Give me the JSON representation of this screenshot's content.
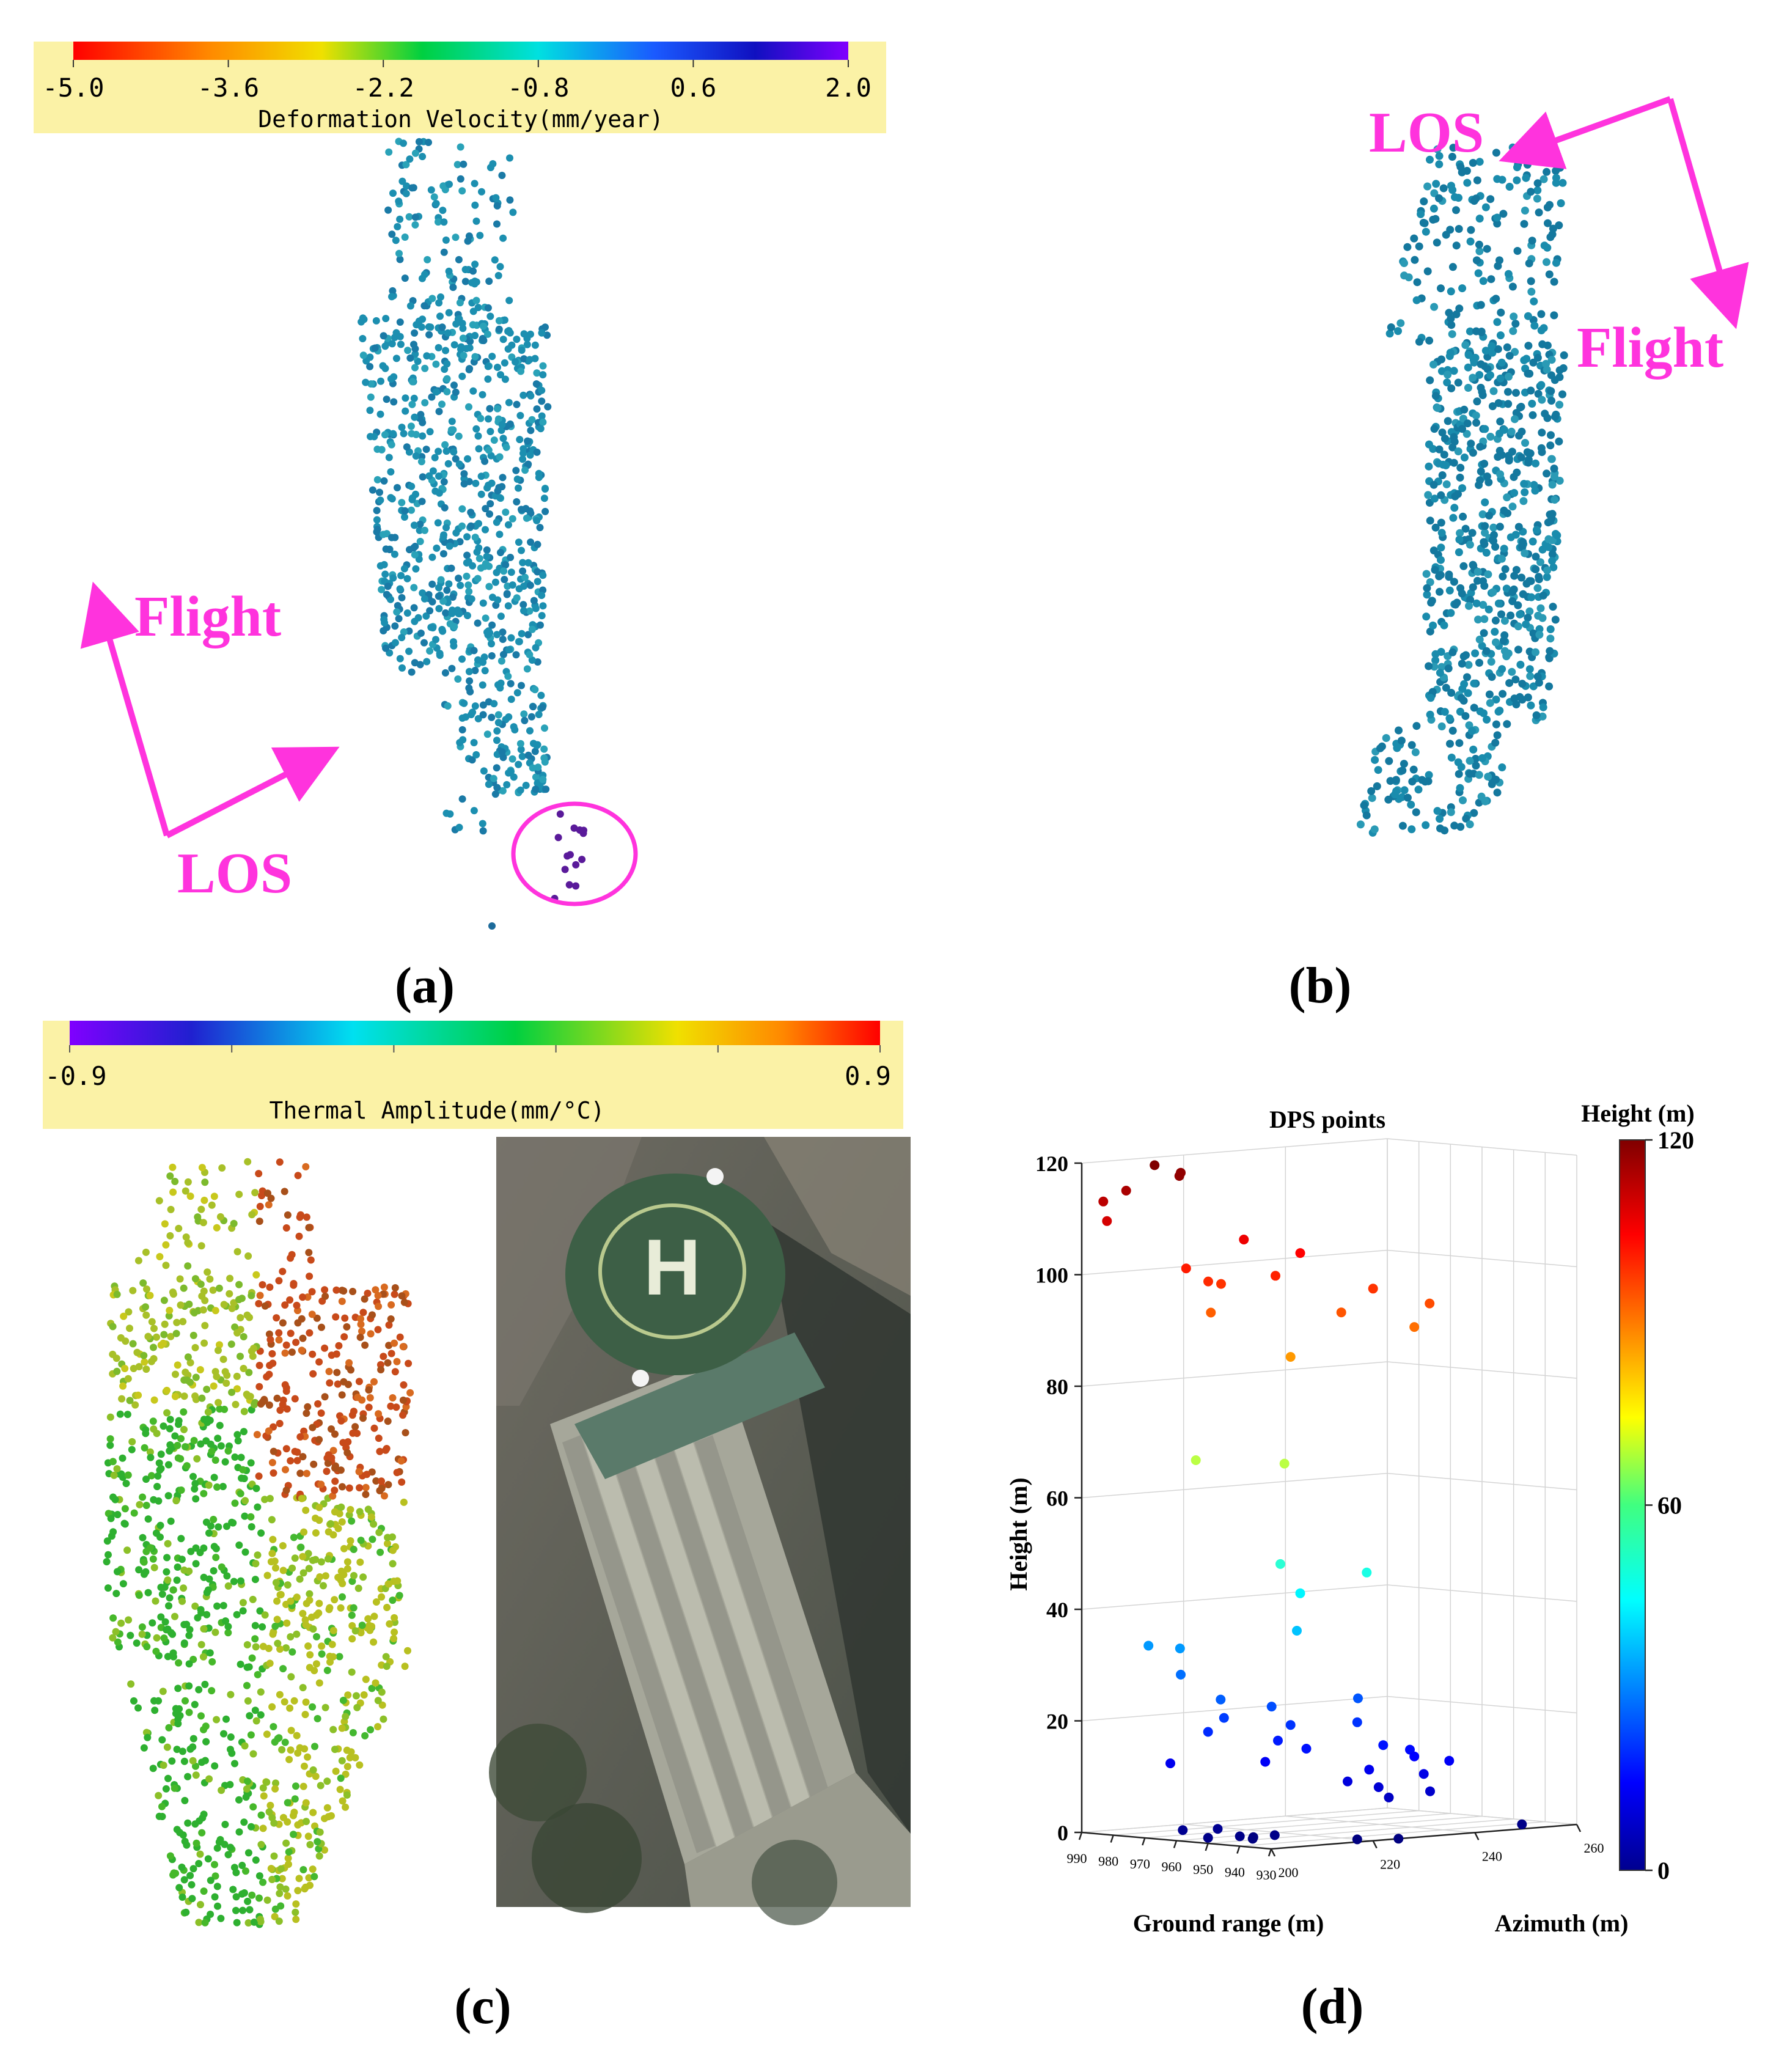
{
  "panels": [
    {
      "id": "a",
      "caption": "(a)"
    },
    {
      "id": "b",
      "caption": "(b)"
    },
    {
      "id": "c",
      "caption": "(c)"
    },
    {
      "id": "d",
      "caption": "(d)"
    }
  ],
  "geometry_labels": {
    "flight": "Flight",
    "los": "LOS",
    "accent_color": "#ff33dd"
  },
  "colors": {
    "colorbar_bg": "#fbf2a6",
    "point_a": "#1a8ca8",
    "point_b": "#12739a",
    "anomaly": "#5a1a9a"
  },
  "chart_data": [
    {
      "panel": "a",
      "type": "scatter",
      "title": "",
      "colorbar": {
        "label": "Deformation Velocity(mm/year)",
        "ticks": [
          "-5.0",
          "-3.6",
          "-2.2",
          "-0.8",
          "0.6",
          "2.0"
        ],
        "range": [
          -5.0,
          2.0
        ],
        "colormap": "jet-like red→violet"
      },
      "annotation": "circled anomalous points (violet)"
    },
    {
      "panel": "b",
      "type": "scatter",
      "title": "",
      "colorbar": null
    },
    {
      "panel": "c",
      "type": "scatter",
      "title": "",
      "colorbar": {
        "label": "Thermal Amplitude(mm/°C)",
        "ticks": [
          "-0.9",
          "0.9"
        ],
        "range": [
          -0.9,
          0.9
        ],
        "colormap": "violet→red"
      },
      "photo": "optical image of building with rooftop helipad",
      "helipad_letter": "H"
    },
    {
      "panel": "d",
      "type": "scatter",
      "title": "DPS points",
      "xlabel": "Ground range (m)",
      "ylabel": "Height (m)",
      "zlabel": "Azimuth (m)",
      "colorbar_label": "Height (m)",
      "colorbar_ticks": [
        "0",
        "60",
        "120"
      ],
      "colorbar_range": [
        0,
        120
      ],
      "height_ticks": [
        "0",
        "20",
        "40",
        "60",
        "80",
        "100",
        "120"
      ],
      "ground_range_ticks": [
        "990",
        "980",
        "970",
        "960",
        "950",
        "940",
        "930"
      ],
      "azimuth_ticks": [
        "200",
        "220",
        "240",
        "260"
      ],
      "height_ylim": [
        0,
        120
      ],
      "grid": true,
      "points": [
        {
          "g": 975,
          "a": 205,
          "h": 120
        },
        {
          "g": 972,
          "a": 208,
          "h": 118
        },
        {
          "g": 984,
          "a": 205,
          "h": 115
        },
        {
          "g": 988,
          "a": 203,
          "h": 113
        },
        {
          "g": 978,
          "a": 212,
          "h": 118
        },
        {
          "g": 982,
          "a": 200,
          "h": 110
        },
        {
          "g": 958,
          "a": 212,
          "h": 107
        },
        {
          "g": 945,
          "a": 215,
          "h": 105
        },
        {
          "g": 965,
          "a": 205,
          "h": 102
        },
        {
          "g": 958,
          "a": 205,
          "h": 100
        },
        {
          "g": 948,
          "a": 212,
          "h": 101
        },
        {
          "g": 962,
          "a": 210,
          "h": 99
        },
        {
          "g": 930,
          "a": 220,
          "h": 99
        },
        {
          "g": 925,
          "a": 228,
          "h": 96
        },
        {
          "g": 932,
          "a": 215,
          "h": 95
        },
        {
          "g": 962,
          "a": 208,
          "h": 94
        },
        {
          "g": 925,
          "a": 225,
          "h": 92
        },
        {
          "g": 940,
          "a": 210,
          "h": 87
        },
        {
          "g": 970,
          "a": 210,
          "h": 67
        },
        {
          "g": 950,
          "a": 215,
          "h": 67
        },
        {
          "g": 940,
          "a": 208,
          "h": 50
        },
        {
          "g": 932,
          "a": 220,
          "h": 48
        },
        {
          "g": 945,
          "a": 215,
          "h": 44
        },
        {
          "g": 938,
          "a": 210,
          "h": 38
        },
        {
          "g": 985,
          "a": 210,
          "h": 33
        },
        {
          "g": 975,
          "a": 210,
          "h": 33
        },
        {
          "g": 978,
          "a": 212,
          "h": 28
        },
        {
          "g": 946,
          "a": 200,
          "h": 26
        },
        {
          "g": 946,
          "a": 210,
          "h": 24
        },
        {
          "g": 938,
          "a": 222,
          "h": 25
        },
        {
          "g": 953,
          "a": 205,
          "h": 22
        },
        {
          "g": 940,
          "a": 210,
          "h": 21
        },
        {
          "g": 935,
          "a": 220,
          "h": 21
        },
        {
          "g": 950,
          "a": 200,
          "h": 20
        },
        {
          "g": 944,
          "a": 210,
          "h": 18
        },
        {
          "g": 935,
          "a": 210,
          "h": 17
        },
        {
          "g": 930,
          "a": 222,
          "h": 17
        },
        {
          "g": 928,
          "a": 226,
          "h": 16
        },
        {
          "g": 925,
          "a": 225,
          "h": 15
        },
        {
          "g": 922,
          "a": 230,
          "h": 14
        },
        {
          "g": 948,
          "a": 210,
          "h": 14
        },
        {
          "g": 928,
          "a": 218,
          "h": 13
        },
        {
          "g": 922,
          "a": 225,
          "h": 12
        },
        {
          "g": 970,
          "a": 205,
          "h": 13
        },
        {
          "g": 930,
          "a": 215,
          "h": 11
        },
        {
          "g": 925,
          "a": 218,
          "h": 10
        },
        {
          "g": 920,
          "a": 225,
          "h": 9
        },
        {
          "g": 925,
          "a": 220,
          "h": 8
        },
        {
          "g": 958,
          "a": 200,
          "h": 2
        },
        {
          "g": 955,
          "a": 205,
          "h": 2
        },
        {
          "g": 950,
          "a": 200,
          "h": 1
        },
        {
          "g": 948,
          "a": 205,
          "h": 1
        },
        {
          "g": 945,
          "a": 210,
          "h": 1
        },
        {
          "g": 952,
          "a": 210,
          "h": 0
        },
        {
          "g": 935,
          "a": 220,
          "h": 0
        },
        {
          "g": 930,
          "a": 225,
          "h": 0
        },
        {
          "g": 955,
          "a": 212,
          "h": 0
        },
        {
          "g": 928,
          "a": 248,
          "h": 1
        }
      ]
    }
  ]
}
